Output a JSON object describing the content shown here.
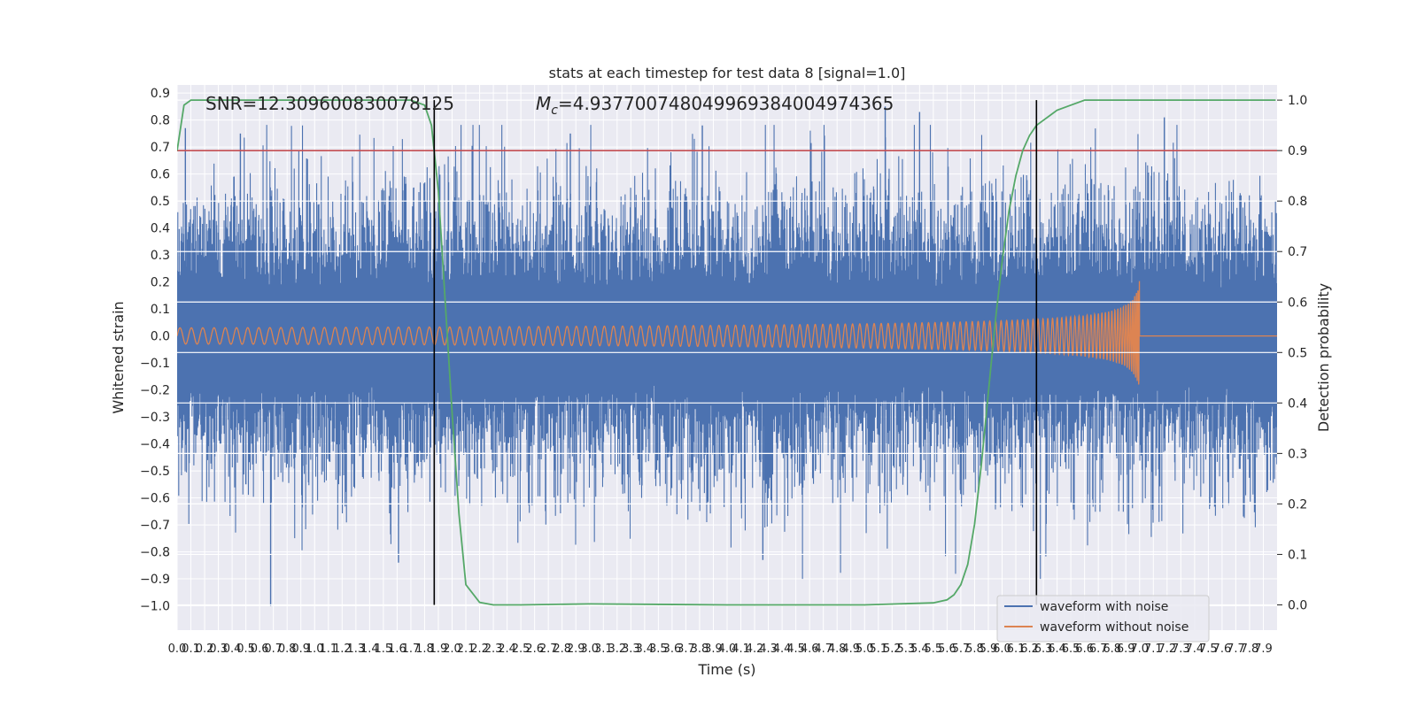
{
  "chart_data": {
    "type": "line",
    "title": "stats at each timestep for test data 8 [signal=1.0]",
    "xlabel": "Time (s)",
    "ylabel": "Whitened strain",
    "y2label": "Detection probability",
    "xlim": [
      0.0,
      8.0
    ],
    "ylim": [
      -1.09,
      0.93
    ],
    "y2lim": [
      -0.05,
      1.03
    ],
    "grid": true,
    "x_ticks": [
      "0.0",
      "0.1",
      "0.2",
      "0.3",
      "0.4",
      "0.5",
      "0.6",
      "0.7",
      "0.8",
      "0.9",
      "1.0",
      "1.1",
      "1.2",
      "1.3",
      "1.4",
      "1.5",
      "1.6",
      "1.7",
      "1.8",
      "1.9",
      "2.0",
      "2.1",
      "2.2",
      "2.3",
      "2.4",
      "2.5",
      "2.6",
      "2.7",
      "2.8",
      "2.9",
      "3.0",
      "3.1",
      "3.2",
      "3.3",
      "3.4",
      "3.5",
      "3.6",
      "3.7",
      "3.8",
      "3.9",
      "4.0",
      "4.1",
      "4.2",
      "4.3",
      "4.4",
      "4.5",
      "4.6",
      "4.7",
      "4.8",
      "4.9",
      "5.0",
      "5.1",
      "5.2",
      "5.3",
      "5.4",
      "5.5",
      "5.6",
      "5.7",
      "5.8",
      "5.9",
      "6.0",
      "6.1",
      "6.2",
      "6.3",
      "6.4",
      "6.5",
      "6.6",
      "6.7",
      "6.8",
      "6.9",
      "7.0",
      "7.1",
      "7.2",
      "7.3",
      "7.4",
      "7.5",
      "7.6",
      "7.7",
      "7.8",
      "7.9"
    ],
    "y_ticks": [
      "0.9",
      "0.8",
      "0.7",
      "0.6",
      "0.5",
      "0.4",
      "0.3",
      "0.2",
      "0.1",
      "0.0",
      "−0.1",
      "−0.2",
      "−0.3",
      "−0.4",
      "−0.5",
      "−0.6",
      "−0.7",
      "−0.8",
      "−0.9",
      "−1.0"
    ],
    "y2_ticks": [
      "1.0",
      "0.9",
      "0.8",
      "0.7",
      "0.6",
      "0.5",
      "0.4",
      "0.3",
      "0.2",
      "0.1",
      "0.0"
    ],
    "annotations": {
      "snr": "SNR=12.309600830078125",
      "mass_label": "M",
      "mass_sub": "c",
      "mass_value": "=4.937700748049969384004974365"
    },
    "legend": {
      "placement": "bottom-right",
      "entries": [
        {
          "label": "waveform with noise",
          "color": "#4c72b0"
        },
        {
          "label": "waveform without noise",
          "color": "#dd8452"
        }
      ]
    },
    "series": [
      {
        "name": "waveform with noise",
        "color": "#4c72b0",
        "axis": "left",
        "noise_envelope": 0.45,
        "max_peak": 0.85,
        "min_trough": -1.0
      },
      {
        "name": "waveform without noise",
        "color": "#dd8452",
        "axis": "left",
        "chirp_start_amp": 0.03,
        "chirp_peak_amp": 0.29,
        "merger_time": 7.0
      },
      {
        "name": "detection probability",
        "color": "#55a868",
        "axis": "right",
        "x": [
          0.0,
          0.05,
          0.1,
          0.2,
          0.5,
          1.0,
          1.5,
          1.7,
          1.8,
          1.85,
          1.9,
          1.95,
          2.0,
          2.05,
          2.1,
          2.2,
          2.3,
          2.5,
          3.0,
          4.0,
          5.0,
          5.5,
          5.6,
          5.65,
          5.7,
          5.75,
          5.8,
          5.85,
          5.9,
          5.95,
          6.0,
          6.05,
          6.1,
          6.15,
          6.2,
          6.25,
          6.3,
          6.35,
          6.4,
          6.5,
          6.6,
          6.7,
          6.8,
          7.0,
          7.5,
          7.99
        ],
        "y": [
          0.9,
          0.99,
          1.0,
          1.0,
          1.0,
          1.0,
          1.0,
          1.0,
          0.99,
          0.95,
          0.82,
          0.6,
          0.38,
          0.18,
          0.04,
          0.005,
          0.0,
          0.0,
          0.002,
          0.0,
          0.0,
          0.004,
          0.01,
          0.02,
          0.04,
          0.08,
          0.16,
          0.28,
          0.42,
          0.56,
          0.68,
          0.78,
          0.85,
          0.9,
          0.93,
          0.95,
          0.96,
          0.97,
          0.98,
          0.99,
          1.0,
          1.0,
          1.0,
          1.0,
          1.0,
          1.0
        ]
      }
    ],
    "threshold_line": {
      "value": 0.9,
      "axis": "right",
      "color": "#c44e52"
    },
    "vertical_lines": [
      1.87,
      6.25
    ]
  }
}
